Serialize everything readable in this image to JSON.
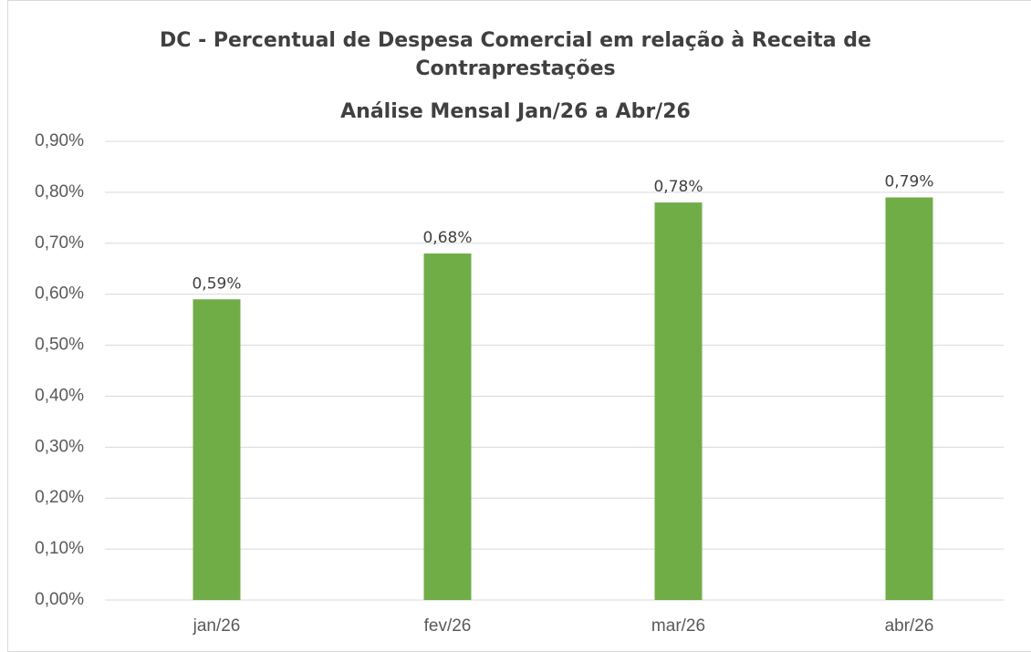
{
  "chart_data": {
    "type": "bar",
    "title": "DC - Percentual de Despesa Comercial em relação à Receita de Contraprestações",
    "subtitle": "Análise Mensal Jan/26 a Abr/26",
    "categories": [
      "jan/26",
      "fev/26",
      "mar/26",
      "abr/26"
    ],
    "values": [
      0.59,
      0.68,
      0.78,
      0.79
    ],
    "value_labels": [
      "0,59%",
      "0,68%",
      "0,78%",
      "0,79%"
    ],
    "color": "#70ad47",
    "ylim": [
      0,
      0.9
    ],
    "yticks": [
      {
        "value": 0,
        "label": "0,00%"
      },
      {
        "value": 0.1,
        "label": "0,10%"
      },
      {
        "value": 0.2,
        "label": "0,20%"
      },
      {
        "value": 0.3,
        "label": "0,30%"
      },
      {
        "value": 0.4,
        "label": "0,40%"
      },
      {
        "value": 0.5,
        "label": "0,50%"
      },
      {
        "value": 0.6,
        "label": "0,60%"
      },
      {
        "value": 0.7,
        "label": "0,70%"
      },
      {
        "value": 0.8,
        "label": "0,80%"
      },
      {
        "value": 0.9,
        "label": "0,90%"
      }
    ],
    "grid": true
  }
}
